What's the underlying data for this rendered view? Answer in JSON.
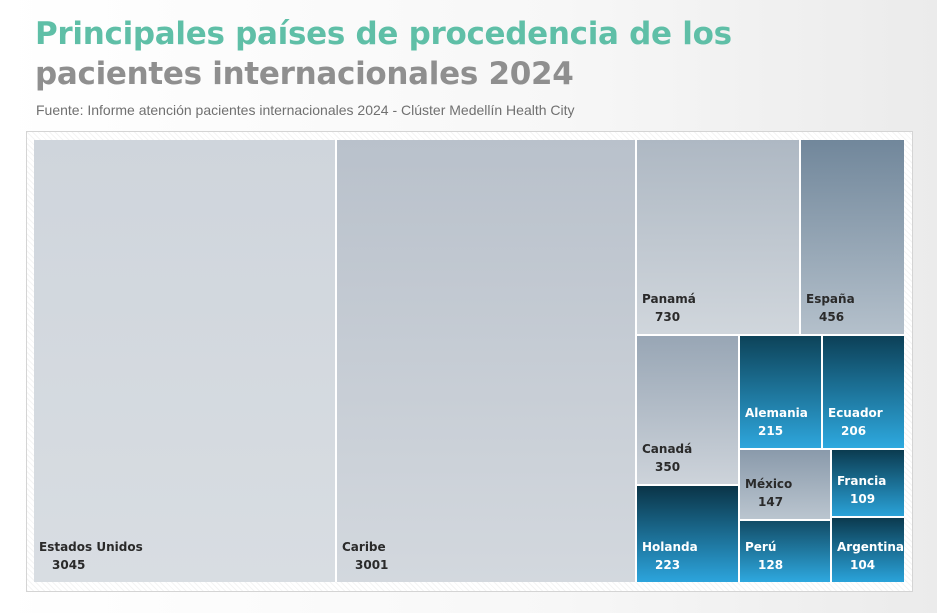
{
  "title": {
    "line1": "Principales países de procedencia de los",
    "line2": "pacientes internacionales 2024"
  },
  "source": "Fuente: Informe atención pacientes internacionales 2024 - Clúster Medellín Health City",
  "colors": {
    "title_teal": "#5fbfa7",
    "title_gray": "#8f8f8f",
    "light_tile": "#c8cfd7",
    "mid_tile": "#7b8da0",
    "dark_teal": "#0b3f55",
    "bright_blue": "#2ea6dc"
  },
  "chart_data": {
    "type": "treemap",
    "title": "Principales países de procedencia de los pacientes internacionales 2024",
    "items": [
      {
        "name": "Estados Unidos",
        "value": 3045,
        "label": "3045"
      },
      {
        "name": "Caribe",
        "value": 3001,
        "label": "3001"
      },
      {
        "name": "Panamá",
        "value": 730,
        "label": "730"
      },
      {
        "name": "España",
        "value": 456,
        "label": "456"
      },
      {
        "name": "Canadá",
        "value": 350,
        "label": "350"
      },
      {
        "name": "Alemania",
        "value": 215,
        "label": "215"
      },
      {
        "name": "Ecuador",
        "value": 206,
        "label": "206"
      },
      {
        "name": "Holanda",
        "value": 223,
        "label": "223"
      },
      {
        "name": "México",
        "value": 147,
        "label": "147"
      },
      {
        "name": "Francia",
        "value": 109,
        "label": "109"
      },
      {
        "name": "Perú",
        "value": 128,
        "label": "128"
      },
      {
        "name": "Argentina",
        "value": 104,
        "label": "104"
      }
    ]
  }
}
